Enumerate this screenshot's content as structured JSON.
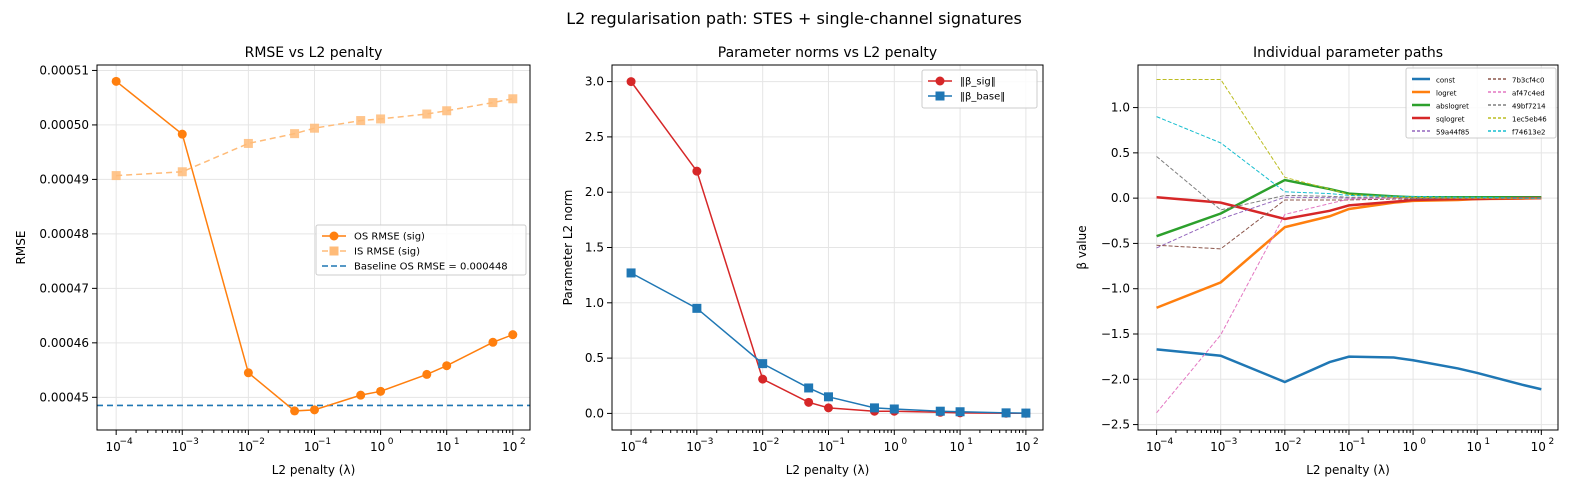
{
  "chart_data": [
    {
      "type": "line",
      "suptitle": "L2 regularisation path: STES + single-channel signatures",
      "title": "RMSE vs L2 penalty",
      "xlabel": "L2 penalty (λ)",
      "ylabel": "RMSE",
      "xscale": "log",
      "xlim": [
        5.13e-05,
        182
      ],
      "ylim": [
        0.000444,
        0.000511
      ],
      "yticks": [
        0.00045,
        0.00046,
        0.00047,
        0.00048,
        0.00049,
        0.0005,
        0.00051
      ],
      "ytick_labels": [
        "0.00045",
        "0.00046",
        "0.00047",
        "0.00048",
        "0.00049",
        "0.00050",
        "0.00051"
      ],
      "xtick_labels": [
        "10",
        "10",
        "10",
        "10",
        "10",
        "10",
        "10"
      ],
      "xtick_exponents": [
        "−4",
        "−3",
        "−2",
        "−1",
        "0",
        "1",
        "2"
      ],
      "x": [
        0.0001,
        0.001,
        0.01,
        0.05,
        0.1,
        0.5,
        1,
        5,
        10,
        50,
        100
      ],
      "series": [
        {
          "name": "OS RMSE (sig)",
          "color": "#ff7f0e",
          "marker": "circle",
          "style": "solid",
          "values": [
            0.000508,
            0.0004983,
            0.0004545,
            0.0004475,
            0.0004477,
            0.0004504,
            0.0004511,
            0.0004542,
            0.0004558,
            0.0004601,
            0.0004615
          ]
        },
        {
          "name": "IS RMSE (sig)",
          "color": "#ffbb78",
          "marker": "square",
          "style": "dashed",
          "values": [
            0.0004907,
            0.0004914,
            0.0004966,
            0.0004984,
            0.0004994,
            0.0005008,
            0.0005011,
            0.000502,
            0.0005026,
            0.0005041,
            0.0005048
          ]
        }
      ],
      "hlines": [
        {
          "name": "Baseline OS RMSE = 0.000448",
          "value": 0.0004485,
          "color": "#1f77b4",
          "style": "dashed"
        }
      ],
      "legend": "center-right",
      "grid": true
    },
    {
      "type": "line",
      "title": "Parameter norms vs L2 penalty",
      "xlabel": "L2 penalty (λ)",
      "ylabel": "Parameter L2 norm",
      "xscale": "log",
      "xlim": [
        5.13e-05,
        182
      ],
      "ylim": [
        -0.15,
        3.15
      ],
      "yticks": [
        0,
        0.5,
        1,
        1.5,
        2,
        2.5,
        3
      ],
      "ytick_labels": [
        "0.0",
        "0.5",
        "1.0",
        "1.5",
        "2.0",
        "2.5",
        "3.0"
      ],
      "xtick_labels": [
        "10",
        "10",
        "10",
        "10",
        "10",
        "10",
        "10"
      ],
      "xtick_exponents": [
        "−4",
        "−3",
        "−2",
        "−1",
        "0",
        "1",
        "2"
      ],
      "x": [
        0.0001,
        0.001,
        0.01,
        0.05,
        0.1,
        0.5,
        1,
        5,
        10,
        50,
        100
      ],
      "series": [
        {
          "name": "‖β_sig‖",
          "color": "#d62728",
          "marker": "circle",
          "style": "solid",
          "values": [
            3.0,
            2.19,
            0.31,
            0.1,
            0.05,
            0.02,
            0.02,
            0.01,
            0.005,
            0.002,
            0.001
          ]
        },
        {
          "name": "‖β_base‖",
          "color": "#1f77b4",
          "marker": "square",
          "style": "solid",
          "values": [
            1.27,
            0.95,
            0.45,
            0.23,
            0.15,
            0.05,
            0.04,
            0.02,
            0.015,
            0.005,
            0.003
          ]
        }
      ],
      "hlines": [],
      "legend": "top-right",
      "grid": true
    },
    {
      "type": "line",
      "title": "Individual parameter paths",
      "xlabel": "L2 penalty (λ)",
      "ylabel": "β value",
      "xscale": "log",
      "xlim": [
        5.13e-05,
        182
      ],
      "ylim": [
        -2.56,
        1.47
      ],
      "yticks": [
        -2.5,
        -2,
        -1.5,
        -1,
        -0.5,
        0,
        0.5,
        1
      ],
      "ytick_labels": [
        "−2.5",
        "−2.0",
        "−1.5",
        "−1.0",
        "−0.5",
        "0.0",
        "0.5",
        "1.0"
      ],
      "xtick_labels": [
        "10",
        "10",
        "10",
        "10",
        "10",
        "10",
        "10"
      ],
      "xtick_exponents": [
        "−4",
        "−3",
        "−2",
        "−1",
        "0",
        "1",
        "2"
      ],
      "x": [
        0.0001,
        0.001,
        0.01,
        0.05,
        0.1,
        0.5,
        1,
        5,
        10,
        50,
        100
      ],
      "series": [
        {
          "name": "const",
          "color": "#1f77b4",
          "style": "thick",
          "values": [
            -1.67,
            -1.74,
            -2.03,
            -1.81,
            -1.75,
            -1.76,
            -1.79,
            -1.88,
            -1.93,
            -2.06,
            -2.11
          ]
        },
        {
          "name": "logret",
          "color": "#ff7f0e",
          "style": "thick",
          "values": [
            -1.21,
            -0.93,
            -0.32,
            -0.2,
            -0.12,
            -0.05,
            -0.03,
            -0.02,
            -0.01,
            -0.005,
            0.0
          ]
        },
        {
          "name": "abslogret",
          "color": "#2ca02c",
          "style": "thick",
          "values": [
            -0.42,
            -0.17,
            0.2,
            0.1,
            0.05,
            0.02,
            0.01,
            0.01,
            0.01,
            0.01,
            0.01
          ]
        },
        {
          "name": "sqlogret",
          "color": "#d62728",
          "style": "thick",
          "values": [
            0.01,
            -0.05,
            -0.23,
            -0.14,
            -0.08,
            -0.04,
            -0.02,
            -0.01,
            -0.01,
            0.0,
            0.0
          ]
        },
        {
          "name": "59a44f85",
          "color": "#9467bd",
          "style": "dashed",
          "values": [
            -0.55,
            -0.23,
            0.01,
            0.005,
            0.0,
            0.0,
            0.0,
            0.0,
            0.0,
            0.0,
            0.0
          ]
        },
        {
          "name": "7b3cf4c0",
          "color": "#8c564b",
          "style": "dashed",
          "values": [
            -0.52,
            -0.56,
            -0.02,
            -0.02,
            -0.02,
            -0.01,
            -0.01,
            0.0,
            0.0,
            0.0,
            0.0
          ]
        },
        {
          "name": "af47c4ed",
          "color": "#e377c2",
          "style": "dashed",
          "values": [
            -2.37,
            -1.51,
            -0.18,
            -0.06,
            -0.01,
            0.0,
            0.0,
            0.0,
            0.0,
            0.0,
            0.0
          ]
        },
        {
          "name": "49bf7214",
          "color": "#7f7f7f",
          "style": "dashed",
          "values": [
            0.46,
            -0.13,
            0.03,
            0.02,
            0.01,
            0.01,
            0.0,
            0.0,
            0.0,
            0.0,
            0.0
          ]
        },
        {
          "name": "1ec5eb46",
          "color": "#bcbd22",
          "style": "dashed",
          "values": [
            1.31,
            1.31,
            0.23,
            0.1,
            0.04,
            0.01,
            0.01,
            0.0,
            0.0,
            0.0,
            0.0
          ]
        },
        {
          "name": "f74613e2",
          "color": "#17becf",
          "style": "dashed",
          "values": [
            0.9,
            0.61,
            0.07,
            0.05,
            0.03,
            0.02,
            0.02,
            0.01,
            0.01,
            0.0,
            0.0
          ]
        }
      ],
      "hlines": [],
      "legend": "top-right",
      "legend_columns": 2,
      "grid": true
    }
  ]
}
